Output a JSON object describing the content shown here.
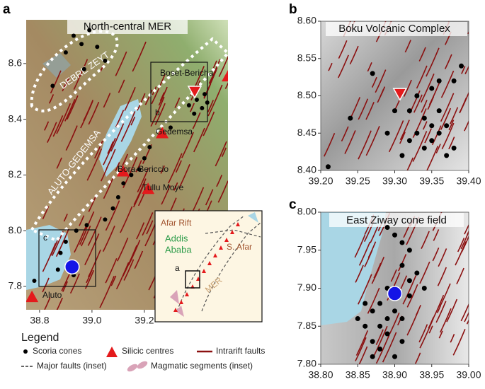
{
  "panels": [
    {
      "letter": "a",
      "title": "North-central MER",
      "xlim": [
        38.749,
        39.519
      ],
      "ylim": [
        7.716,
        8.757
      ],
      "xticks": [
        38.8,
        {
          "value": 39,
          "label": "39.0"
        },
        39.2
      ],
      "yticks": [
        7.8,
        {
          "value": 8,
          "label": "8.0"
        },
        8.2,
        8.4,
        8.6
      ],
      "zone_labels": [
        "DEBRE ZEYT",
        "ALUTO-GEDEMSA"
      ],
      "box_labels": [
        "b",
        "c"
      ],
      "scoria_cones": {
        "lon": [
          38.93,
          38.96,
          38.99,
          39.02,
          38.9,
          39.05,
          38.97,
          38.85,
          39.37,
          39.4,
          39.42,
          39.44,
          39.39,
          39.43,
          39.3,
          39.22,
          39.2,
          39.18,
          39.12,
          39.1,
          39.08,
          39.05,
          39.15,
          38.98,
          38.94,
          38.9,
          38.88,
          38.91,
          38.87,
          38.93,
          38.78
        ],
        "lat": [
          8.7,
          8.67,
          8.72,
          8.66,
          8.64,
          8.61,
          8.58,
          8.52,
          8.45,
          8.47,
          8.44,
          8.46,
          8.42,
          8.49,
          8.37,
          8.3,
          8.26,
          8.22,
          8.17,
          8.12,
          8.08,
          8.04,
          8.2,
          8.02,
          8.0,
          7.96,
          7.92,
          7.88,
          7.86,
          7.84,
          7.82
        ]
      },
      "silicic_centres": {
        "names": [
          "Boset-Bericha",
          null,
          "Gedemsa",
          "Bora-Bericcio",
          "Tullu Moye",
          "Aluto"
        ],
        "lon": [
          39.519,
          39.392,
          39.268,
          39.119,
          39.214,
          38.771
        ],
        "lat": [
          8.554,
          8.5,
          8.35,
          8.213,
          8.15,
          7.762
        ],
        "inverted": [
          false,
          true,
          false,
          false,
          false,
          false
        ]
      },
      "highlight": {
        "lon": 38.924,
        "lat": 7.87
      },
      "inset": {
        "labels": [
          "Afar Rift",
          "S. Afar",
          "a",
          "MER"
        ],
        "city": [
          "Addis",
          "Ababa"
        ]
      }
    },
    {
      "letter": "b",
      "title": "Boku Volcanic Complex",
      "xlim": [
        39.2,
        39.4
      ],
      "ylim": [
        8.4,
        8.6
      ],
      "xticks": [
        {
          "value": 39.2,
          "label": "39.20"
        },
        39.25,
        {
          "value": 39.3,
          "label": "39.30"
        },
        39.35,
        {
          "value": 39.4,
          "label": "39.40"
        }
      ],
      "yticks": [
        {
          "value": 8.4,
          "label": "8.40"
        },
        8.45,
        {
          "value": 8.5,
          "label": "8.50"
        },
        8.55,
        {
          "value": 8.6,
          "label": "8.60"
        }
      ],
      "scoria_cones": {
        "lon": [
          39.33,
          39.34,
          39.35,
          39.36,
          39.35,
          39.36,
          39.37,
          39.33,
          39.32,
          39.34,
          39.38,
          39.39,
          39.36,
          39.3,
          39.29,
          39.31,
          39.24,
          39.27,
          39.35,
          39.32,
          39.21,
          39.38,
          39.37
        ],
        "lat": [
          8.5,
          8.47,
          8.46,
          8.45,
          8.44,
          8.48,
          8.46,
          8.45,
          8.44,
          8.43,
          8.52,
          8.54,
          8.52,
          8.48,
          8.45,
          8.42,
          8.47,
          8.53,
          8.51,
          8.48,
          8.405,
          8.43,
          8.42
        ]
      },
      "silicic_centres": {
        "names": [
          null
        ],
        "lon": [
          39.307
        ],
        "lat": [
          8.503
        ],
        "inverted": [
          true
        ]
      }
    },
    {
      "letter": "c",
      "title": "East Ziway cone field",
      "xlim": [
        38.8,
        39.0
      ],
      "ylim": [
        7.8,
        8.0
      ],
      "xticks": [
        {
          "value": 38.8,
          "label": "38.80"
        },
        38.85,
        {
          "value": 38.9,
          "label": "38.90"
        },
        38.95,
        {
          "value": 39,
          "label": "39.00"
        }
      ],
      "yticks": [
        {
          "value": 7.8,
          "label": "7.80"
        },
        7.85,
        {
          "value": 7.9,
          "label": "7.90"
        },
        7.95,
        {
          "value": 8,
          "label": "8.00"
        }
      ],
      "scoria_cones": {
        "lon": [
          38.89,
          38.9,
          38.91,
          38.92,
          38.91,
          38.93,
          38.92,
          38.89,
          38.88,
          38.87,
          38.9,
          38.89,
          38.88,
          38.86,
          38.87,
          38.89,
          38.91,
          38.92,
          38.94,
          38.85,
          38.87,
          38.88,
          38.86,
          38.91,
          38.9
        ],
        "lat": [
          7.98,
          7.97,
          7.96,
          7.95,
          7.93,
          7.92,
          7.91,
          7.9,
          7.88,
          7.87,
          7.87,
          7.86,
          7.85,
          7.85,
          7.83,
          7.84,
          7.86,
          7.89,
          7.9,
          7.86,
          7.81,
          7.82,
          7.88,
          7.83,
          7.81
        ]
      },
      "highlight": {
        "lon": 38.9,
        "lat": 7.893
      }
    }
  ],
  "legend": {
    "title": "Legend",
    "items": [
      "Scoria cones",
      "Silicic centres",
      "Intrarift faults",
      "Major faults (inset)",
      "Magmatic segments (inset)"
    ]
  }
}
